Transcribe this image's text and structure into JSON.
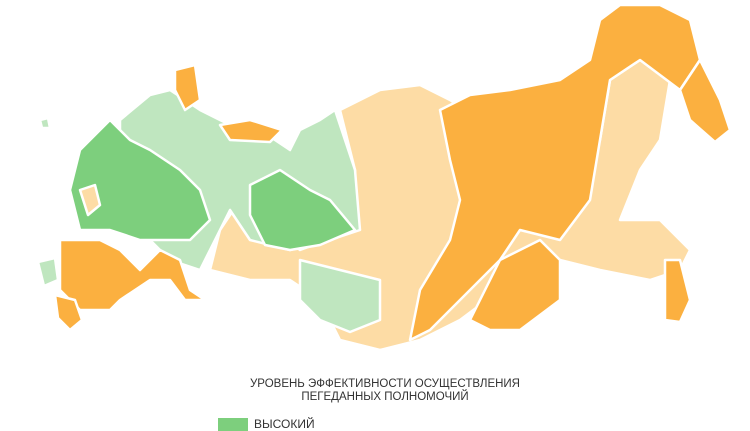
{
  "legend": {
    "title_line1": "УРОВЕНЬ ЭФФЕКТИВНОСТИ ОСУЩЕСТВЛЕНИЯ",
    "title_line2": "ПЕГЕДАННЫХ ПОЛНОМОЧИЙ",
    "items": [
      {
        "label": "ВЫСОКИЙ",
        "color": "#7dcf7d"
      }
    ]
  },
  "colors": {
    "high": "#7dcf7d",
    "above_average": "#bfe6bf",
    "below_average": "#fddca5",
    "low": "#fbb040"
  }
}
